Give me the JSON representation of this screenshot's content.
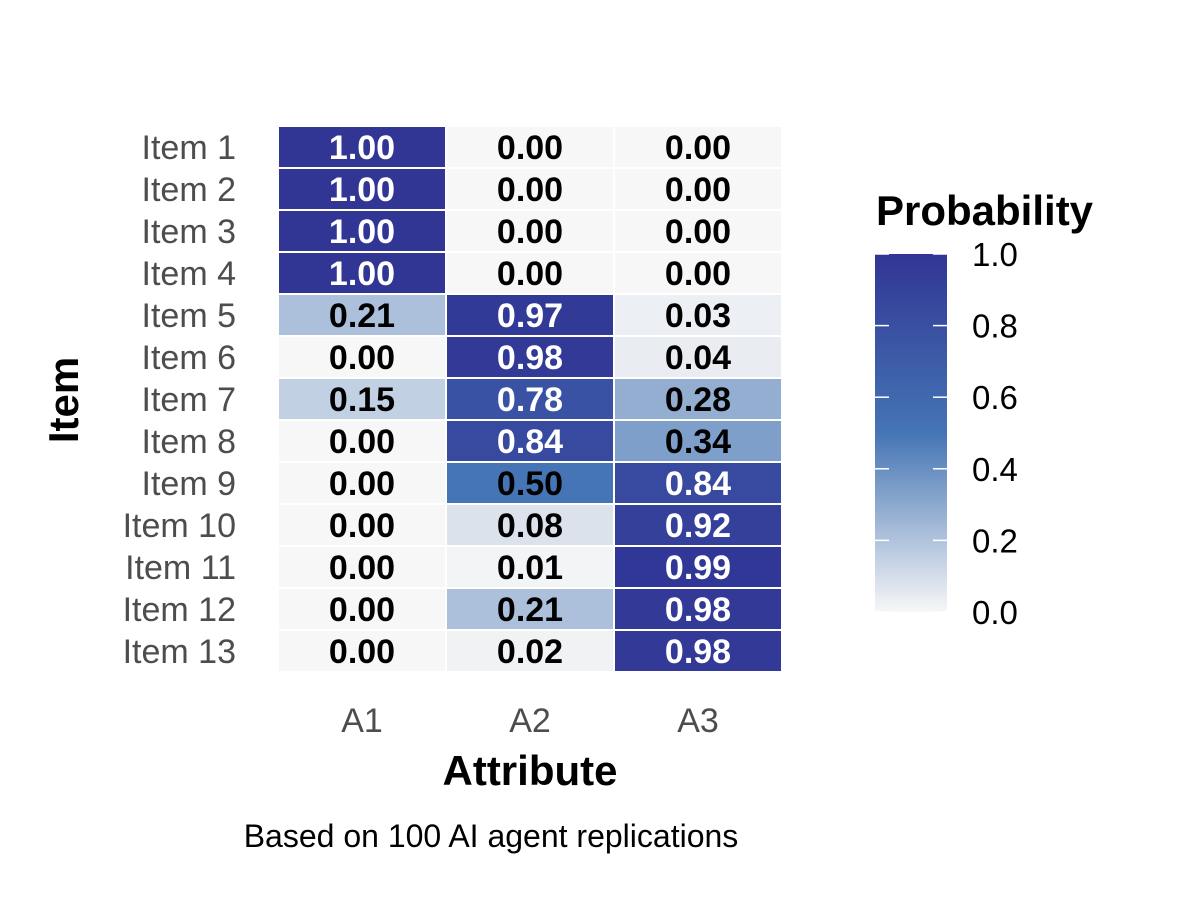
{
  "chart_data": {
    "type": "heatmap",
    "xlabel": "Attribute",
    "ylabel": "Item",
    "caption": "Based on 100 AI agent replications",
    "x_categories": [
      "A1",
      "A2",
      "A3"
    ],
    "y_categories": [
      "Item 1",
      "Item 2",
      "Item 3",
      "Item 4",
      "Item 5",
      "Item 6",
      "Item 7",
      "Item 8",
      "Item 9",
      "Item 10",
      "Item 11",
      "Item 12",
      "Item 13"
    ],
    "values": [
      [
        1.0,
        0.0,
        0.0
      ],
      [
        1.0,
        0.0,
        0.0
      ],
      [
        1.0,
        0.0,
        0.0
      ],
      [
        1.0,
        0.0,
        0.0
      ],
      [
        0.21,
        0.97,
        0.03
      ],
      [
        0.0,
        0.98,
        0.04
      ],
      [
        0.15,
        0.78,
        0.28
      ],
      [
        0.0,
        0.84,
        0.34
      ],
      [
        0.0,
        0.5,
        0.84
      ],
      [
        0.0,
        0.08,
        0.92
      ],
      [
        0.0,
        0.01,
        0.99
      ],
      [
        0.0,
        0.21,
        0.98
      ],
      [
        0.0,
        0.02,
        0.98
      ]
    ],
    "value_labels": [
      [
        "1.00",
        "0.00",
        "0.00"
      ],
      [
        "1.00",
        "0.00",
        "0.00"
      ],
      [
        "1.00",
        "0.00",
        "0.00"
      ],
      [
        "1.00",
        "0.00",
        "0.00"
      ],
      [
        "0.21",
        "0.97",
        "0.03"
      ],
      [
        "0.00",
        "0.98",
        "0.04"
      ],
      [
        "0.15",
        "0.78",
        "0.28"
      ],
      [
        "0.00",
        "0.84",
        "0.34"
      ],
      [
        "0.00",
        "0.50",
        "0.84"
      ],
      [
        "0.00",
        "0.08",
        "0.92"
      ],
      [
        "0.00",
        "0.01",
        "0.99"
      ],
      [
        "0.00",
        "0.21",
        "0.98"
      ],
      [
        "0.00",
        "0.02",
        "0.98"
      ]
    ],
    "legend": {
      "title": "Probability",
      "position": "right",
      "range": [
        0,
        1
      ],
      "ticks": [
        "0.0",
        "0.2",
        "0.4",
        "0.6",
        "0.8",
        "1.0"
      ],
      "colors": {
        "low": "#f7f7f7",
        "mid": "#4575b4",
        "high": "#313695"
      }
    }
  }
}
